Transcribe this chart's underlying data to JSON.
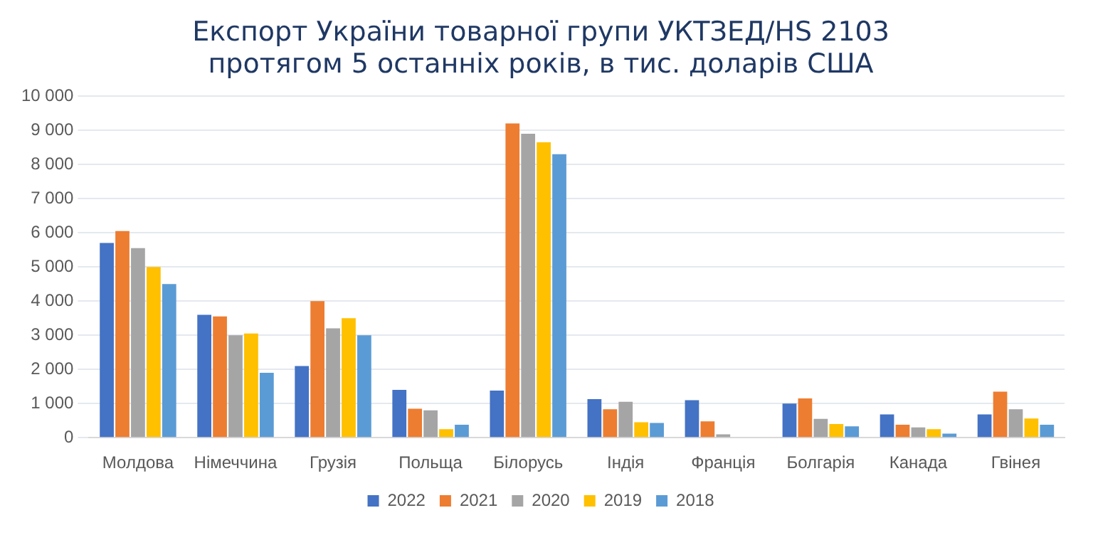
{
  "chart_data": {
    "type": "bar",
    "title": "Експорт України товарної групи УКТЗЕД/HS 2103\nпротягом 5 останніх років, в тис. доларів США",
    "categories": [
      "Молдова",
      "Німеччина",
      "Грузія",
      "Польща",
      "Білорусь",
      "Індія",
      "Франція",
      "Болгарія",
      "Канада",
      "Гвінея"
    ],
    "series": [
      {
        "name": "2022",
        "color": "#4472c4",
        "values": [
          5700,
          3600,
          2100,
          1400,
          1380,
          1130,
          1100,
          1000,
          680,
          680
        ]
      },
      {
        "name": "2021",
        "color": "#ed7d31",
        "values": [
          6050,
          3550,
          4000,
          850,
          9200,
          830,
          480,
          1150,
          380,
          1350
        ]
      },
      {
        "name": "2020",
        "color": "#a5a5a5",
        "values": [
          5550,
          3000,
          3200,
          800,
          8900,
          1050,
          100,
          550,
          300,
          830
        ]
      },
      {
        "name": "2019",
        "color": "#ffc000",
        "values": [
          5000,
          3050,
          3500,
          250,
          8650,
          450,
          0,
          400,
          250,
          560
        ]
      },
      {
        "name": "2018",
        "color": "#5b9bd5",
        "values": [
          4500,
          1900,
          3000,
          380,
          8300,
          430,
          0,
          330,
          120,
          380
        ]
      }
    ],
    "ylim": [
      0,
      10000
    ],
    "yticks": [
      0,
      {
        "value": 1000,
        "label": "1 000"
      },
      {
        "value": 2000,
        "label": "2 000"
      },
      {
        "value": 3000,
        "label": "3 000"
      },
      {
        "value": 4000,
        "label": "4 000"
      },
      {
        "value": 5000,
        "label": "5 000"
      },
      {
        "value": 6000,
        "label": "6 000"
      },
      {
        "value": 7000,
        "label": "7 000"
      },
      {
        "value": 8000,
        "label": "8 000"
      },
      {
        "value": 9000,
        "label": "9 000"
      },
      {
        "value": 10000,
        "label": "10 000"
      }
    ],
    "grid": "y",
    "legend": "bottom"
  }
}
